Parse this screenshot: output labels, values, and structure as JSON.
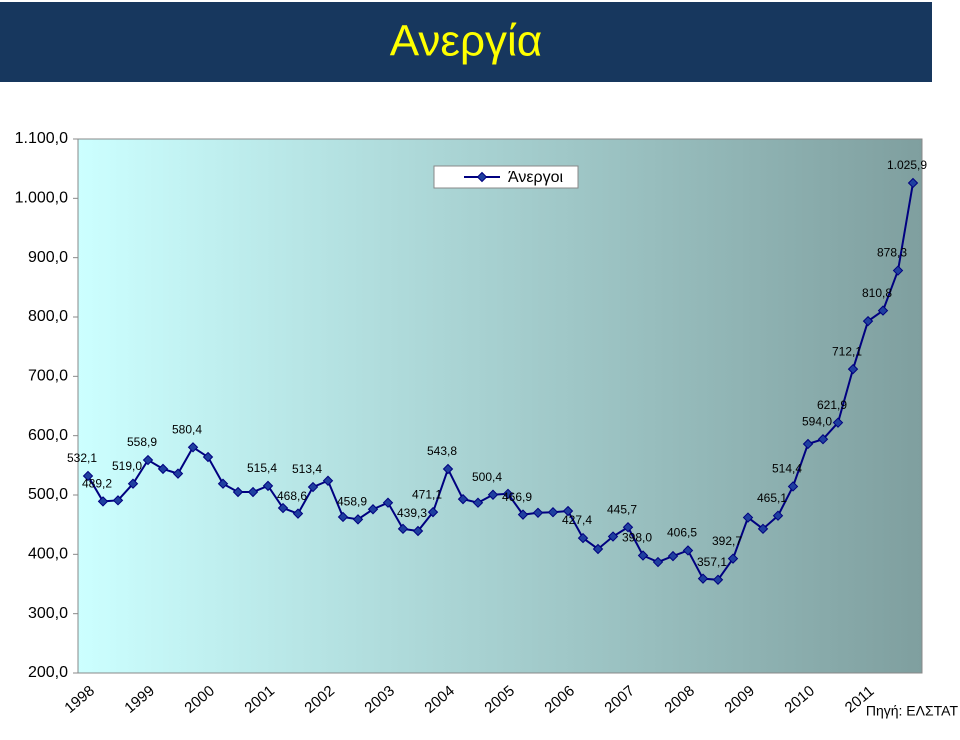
{
  "chart_data": {
    "type": "line",
    "title": "Ανεργία",
    "source": "Πηγή: ΕΛΣΤΑΤ",
    "categories": [
      "1998",
      null,
      null,
      null,
      "1999",
      null,
      null,
      null,
      "2000",
      null,
      null,
      null,
      "2001",
      null,
      null,
      null,
      "2002",
      null,
      null,
      null,
      "2003",
      null,
      null,
      null,
      "2004",
      null,
      null,
      null,
      "2005",
      null,
      null,
      null,
      "2006",
      null,
      null,
      null,
      "2007",
      null,
      null,
      null,
      "2008",
      null,
      null,
      null,
      "2009",
      null,
      null,
      null,
      "2010",
      null,
      null,
      null,
      "2011",
      null,
      null,
      null
    ],
    "series": [
      {
        "name": "Άνεργοι",
        "color": "#000080",
        "marker_color": "#1f3f9f",
        "values": [
          532.1,
          489.2,
          491,
          519.0,
          558.9,
          544,
          536,
          580.4,
          564,
          519,
          505,
          505,
          515.4,
          478,
          468.6,
          513.4,
          524,
          463,
          458.9,
          476,
          487,
          443,
          439.3,
          471.1,
          543.8,
          493,
          487,
          500.4,
          502,
          466.9,
          470,
          471,
          473,
          427.4,
          409,
          430,
          445.7,
          398.0,
          387,
          397,
          406.5,
          359,
          357.1,
          392.7,
          462,
          443,
          465.1,
          514.4,
          586,
          594.0,
          621.9,
          712.1,
          793,
          810.8,
          878.3,
          1025.9
        ],
        "value_labels": [
          "532,1",
          "489,2",
          null,
          "519,0",
          "558,9",
          null,
          null,
          "580,4",
          null,
          null,
          null,
          null,
          "515,4",
          null,
          "468,6",
          "513,4",
          null,
          null,
          "458,9",
          null,
          null,
          null,
          "439,3",
          "471,1",
          "543,8",
          null,
          null,
          "500,4",
          null,
          "466,9",
          null,
          null,
          null,
          "427,4",
          null,
          null,
          "445,7",
          "398,0",
          null,
          null,
          "406,5",
          null,
          "357,1",
          "392,7",
          null,
          null,
          "465,1",
          "514,4",
          null,
          "594,0",
          "621,9",
          "712,1",
          null,
          "810,8",
          "878,3",
          "1.025,9"
        ]
      }
    ],
    "ylim": [
      200,
      1100
    ],
    "yticks": [
      {
        "value": 200,
        "label": "200,0"
      },
      {
        "value": 300,
        "label": "300,0"
      },
      {
        "value": 400,
        "label": "400,0"
      },
      {
        "value": 500,
        "label": "500,0"
      },
      {
        "value": 600,
        "label": "600,0"
      },
      {
        "value": 700,
        "label": "700,0"
      },
      {
        "value": 800,
        "label": "800,0"
      },
      {
        "value": 900,
        "label": "900,0"
      },
      {
        "value": 1000,
        "label": "1.000,0"
      },
      {
        "value": 1100,
        "label": "1.100,0"
      }
    ],
    "grid": false,
    "legend": "top"
  }
}
